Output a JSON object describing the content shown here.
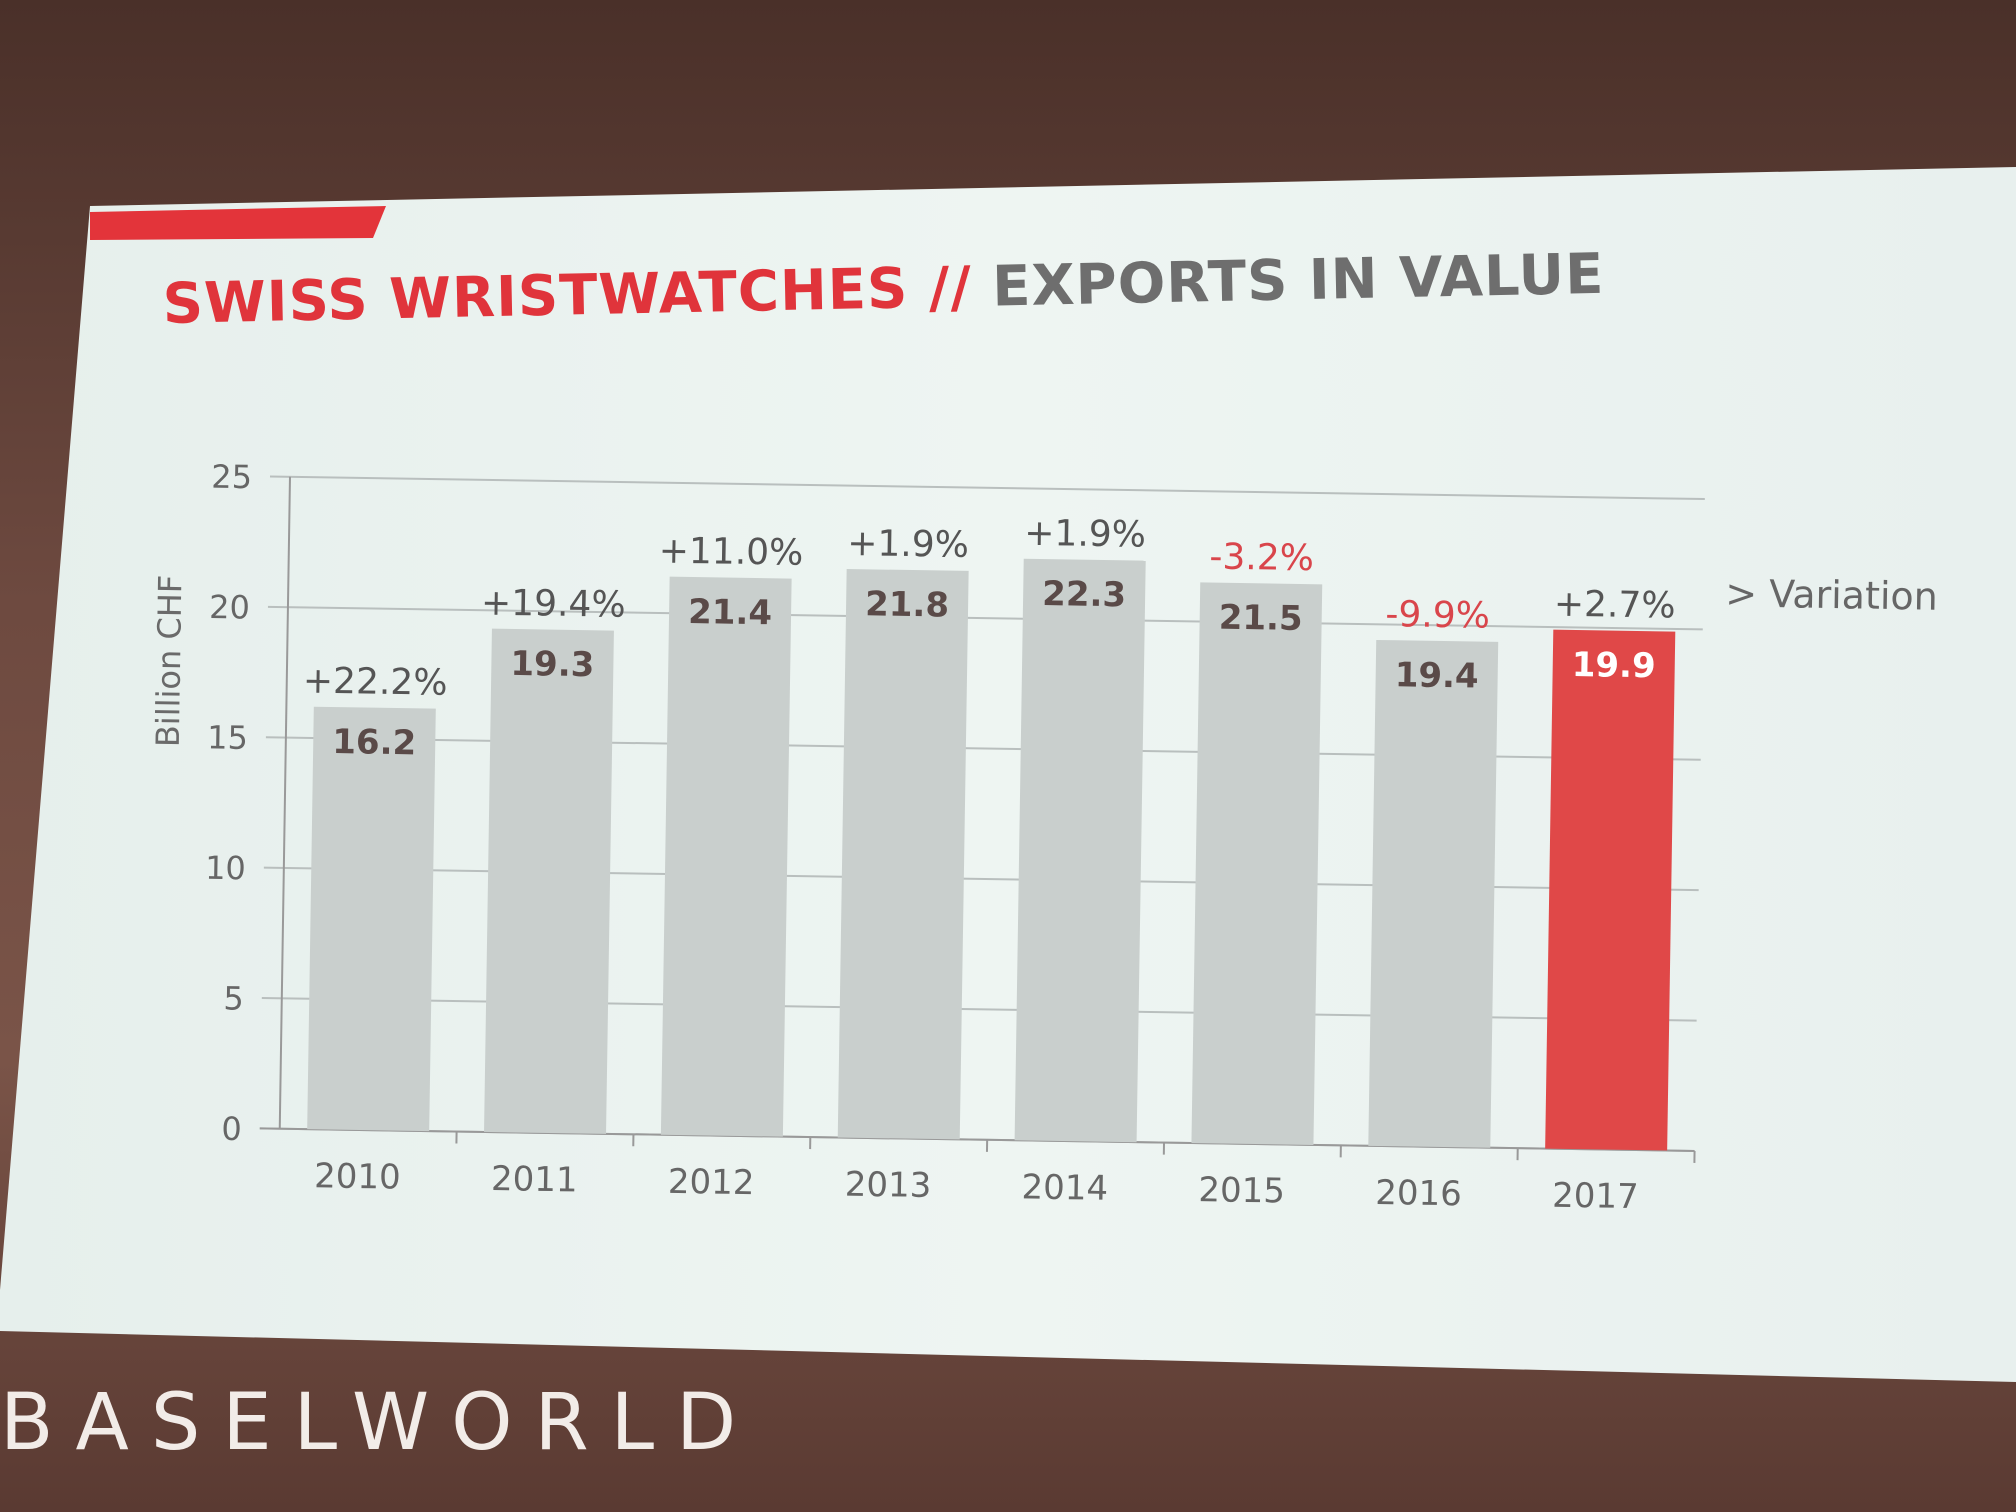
{
  "header": {
    "title_part1": "SWISS WRISTWATCHES",
    "separator": "//",
    "title_part2": "EXPORTS IN VALUE"
  },
  "footer": {
    "logo": "BASELWORLD"
  },
  "colors": {
    "accent": "#e3343a",
    "bar": "#c9cfcd",
    "highlight_bar": "#e04848",
    "negative_text": "#d9454b",
    "positive_text": "#555555"
  },
  "chart_data": {
    "type": "bar",
    "ylabel": "Billion CHF",
    "ylim": [
      0,
      25
    ],
    "yticks": [
      0,
      5,
      10,
      15,
      20,
      25
    ],
    "grid": true,
    "categories": [
      "2010",
      "2011",
      "2012",
      "2013",
      "2014",
      "2015",
      "2016",
      "2017"
    ],
    "values": [
      16.2,
      19.3,
      21.4,
      21.8,
      22.3,
      21.5,
      19.4,
      19.9
    ],
    "value_labels": [
      "16.2",
      "19.3",
      "21.4",
      "21.8",
      "22.3",
      "21.5",
      "19.4",
      "19.9"
    ],
    "variation": [
      "+22.2%",
      "+19.4%",
      "+11.0%",
      "+1.9%",
      "+1.9%",
      "-3.2%",
      "-9.9%",
      "+2.7%"
    ],
    "variation_legend": "> Variation",
    "highlight_category": "2017"
  }
}
